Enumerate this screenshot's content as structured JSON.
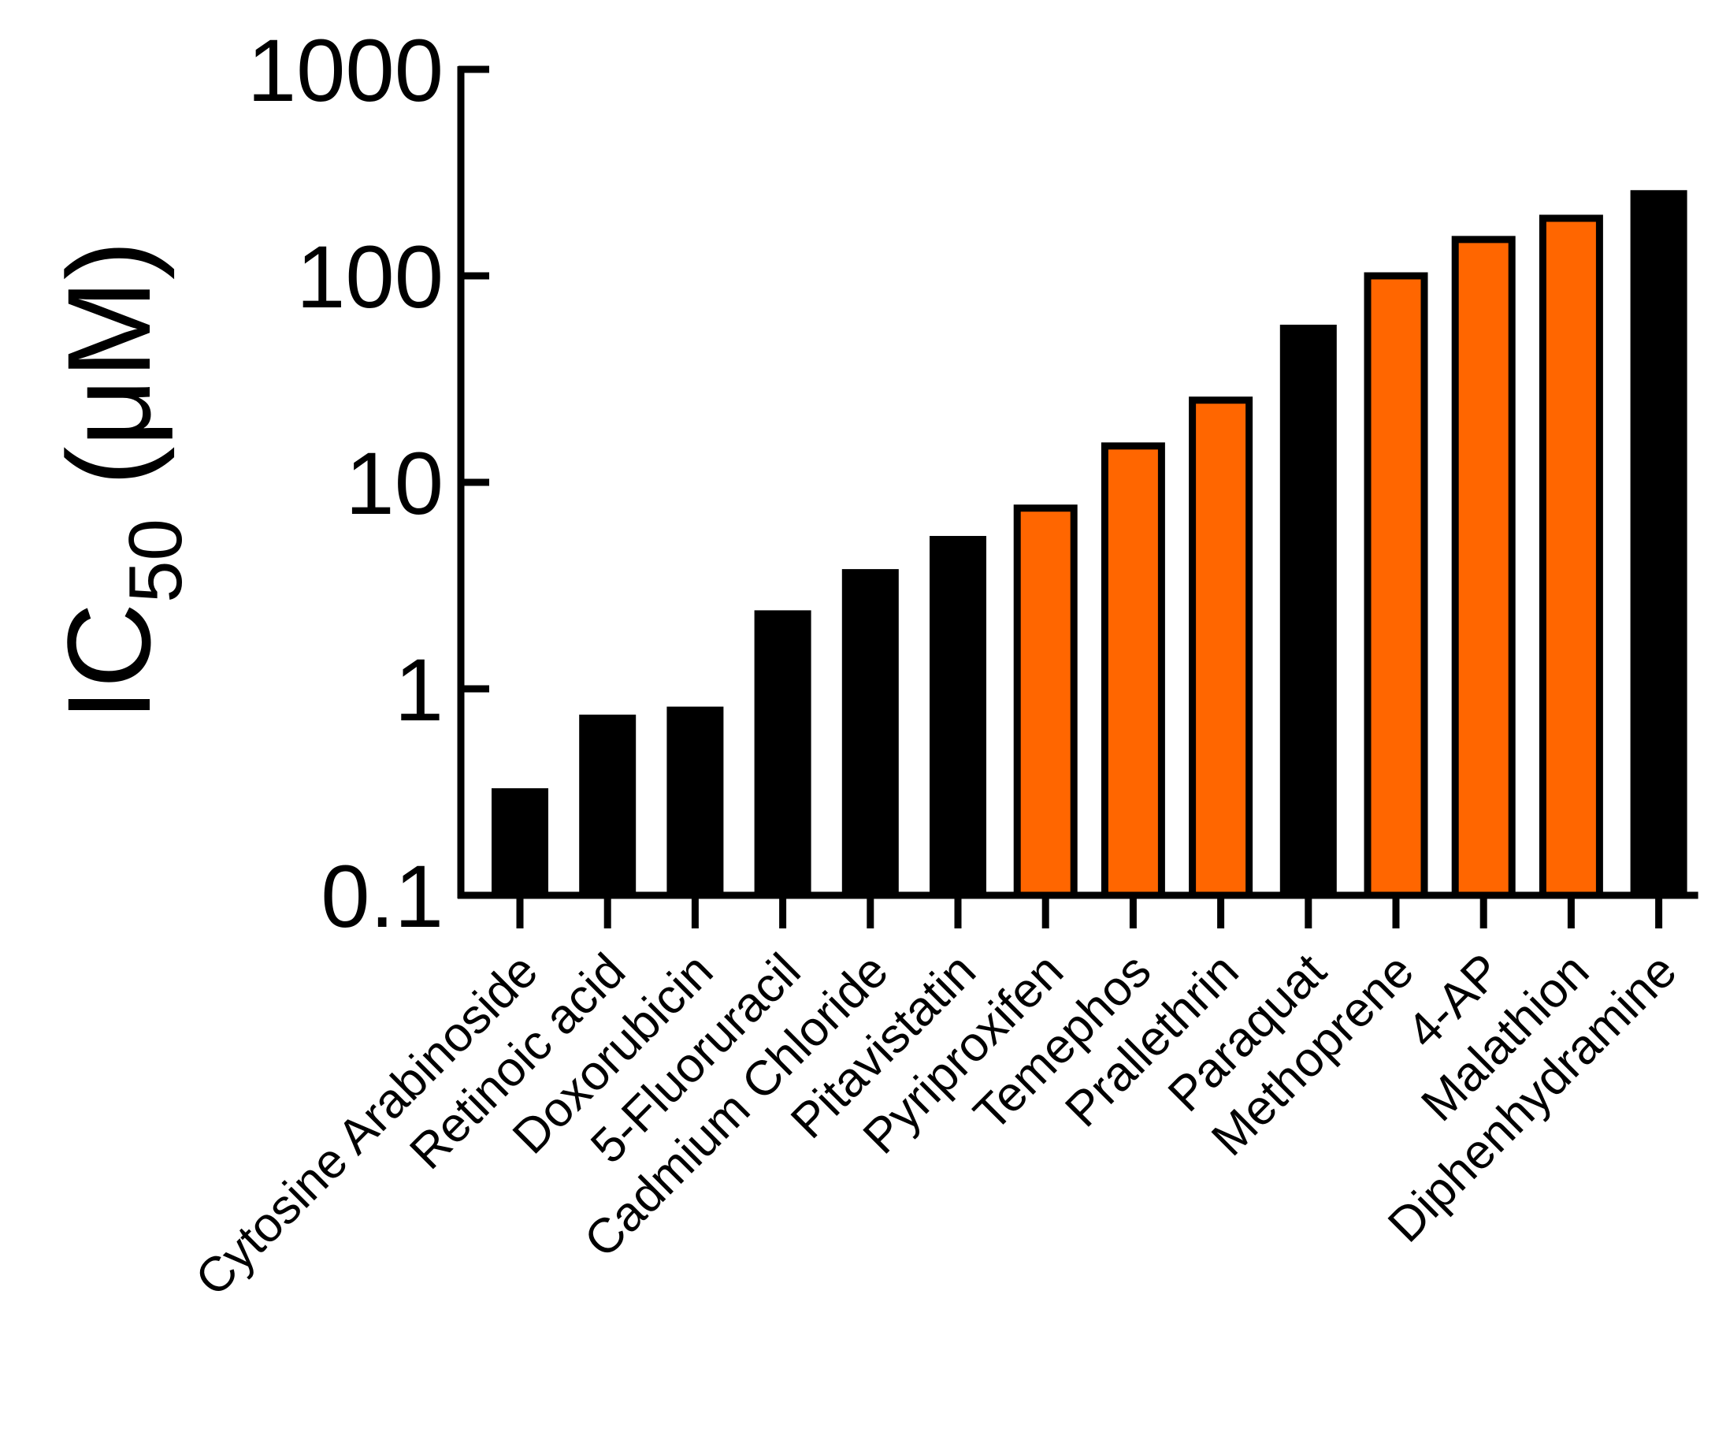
{
  "chart_data": {
    "type": "bar",
    "title": "",
    "xlabel": "",
    "ylabel": {
      "main": "IC",
      "subscript": "50",
      "unit": " (μM)"
    },
    "yscale": "log",
    "ylim": [
      0.1,
      1000
    ],
    "yticks": [
      {
        "value": 0.1,
        "label": "0.1"
      },
      {
        "value": 1,
        "label": "1"
      },
      {
        "value": 10,
        "label": "10"
      },
      {
        "value": 100,
        "label": "100"
      },
      {
        "value": 1000,
        "label": "1000"
      }
    ],
    "categories": [
      "Cytosine Arabinoside",
      "Retinoic acid",
      "Doxorubicin",
      "5-Fluoruracil",
      "Cadmium Chloride",
      "Pitavistatin",
      "Pyriproxifen",
      "Temephos",
      "Prallethrin",
      "Paraquat",
      "Methoprene",
      "4-AP",
      "Malathion",
      "Diphenhydramine"
    ],
    "values": [
      0.33,
      0.75,
      0.82,
      2.4,
      3.8,
      5.5,
      7.5,
      15,
      25,
      58,
      100,
      150,
      190,
      260
    ],
    "groups": [
      "reference",
      "reference",
      "reference",
      "reference",
      "reference",
      "reference",
      "pesticide",
      "pesticide",
      "pesticide",
      "reference",
      "pesticide",
      "pesticide",
      "pesticide",
      "reference"
    ],
    "colors": {
      "reference": "#000000",
      "pesticide": "#ff6600",
      "outline": "#000000",
      "axis": "#000000"
    }
  }
}
